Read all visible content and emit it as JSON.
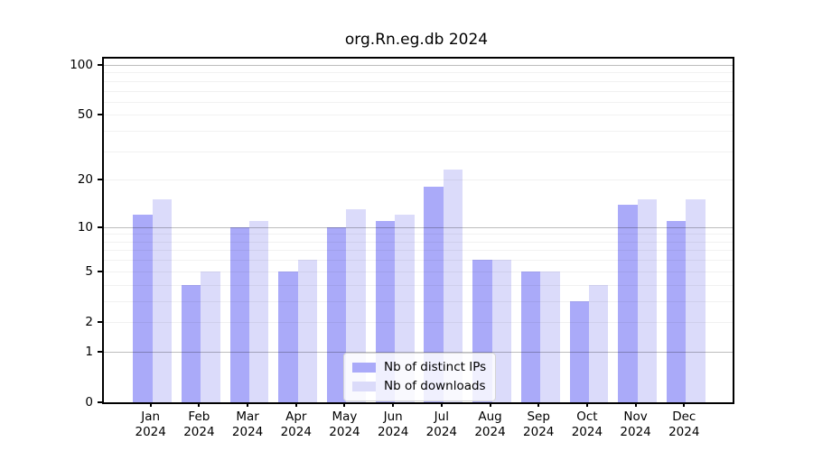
{
  "chart_data": {
    "type": "bar",
    "title": "org.Rn.eg.db 2024",
    "categories": [
      "Jan 2024",
      "Feb 2024",
      "Mar 2024",
      "Apr 2024",
      "May 2024",
      "Jun 2024",
      "Jul 2024",
      "Aug 2024",
      "Sep 2024",
      "Oct 2024",
      "Nov 2024",
      "Dec 2024"
    ],
    "month_labels": [
      "Jan",
      "Feb",
      "Mar",
      "Apr",
      "May",
      "Jun",
      "Jul",
      "Aug",
      "Sep",
      "Oct",
      "Nov",
      "Dec"
    ],
    "x_tick_year": "2024",
    "series": [
      {
        "name": "Nb of distinct IPs",
        "color": "#aaaaf9",
        "values": [
          12,
          4,
          10,
          5,
          10,
          11,
          18,
          6,
          5,
          3,
          14,
          11
        ]
      },
      {
        "name": "Nb of downloads",
        "color": "#dbdbfa",
        "values": [
          15,
          5,
          11,
          6,
          13,
          12,
          23,
          6,
          5,
          4,
          15,
          15
        ]
      }
    ],
    "y_scale": "log10(1+x)",
    "ylim": [
      0,
      100
    ],
    "y_axis_ticks": [
      0,
      1,
      2,
      5,
      10,
      20,
      50,
      100
    ],
    "gridlines_minor": [
      2,
      3,
      4,
      5,
      6,
      7,
      8,
      9,
      20,
      30,
      40,
      50,
      60,
      70,
      80,
      90
    ],
    "gridlines_major": [
      1,
      10,
      100
    ],
    "grid": "on",
    "legend_position": "bottom-center"
  },
  "colors": {
    "background": "#ffffff",
    "axis": "#000000",
    "grid_minor": "#ececec",
    "grid_major": "#bdbdbd",
    "series_distinct_ips": "#aaaaf9",
    "series_downloads": "#dbdbfa"
  }
}
